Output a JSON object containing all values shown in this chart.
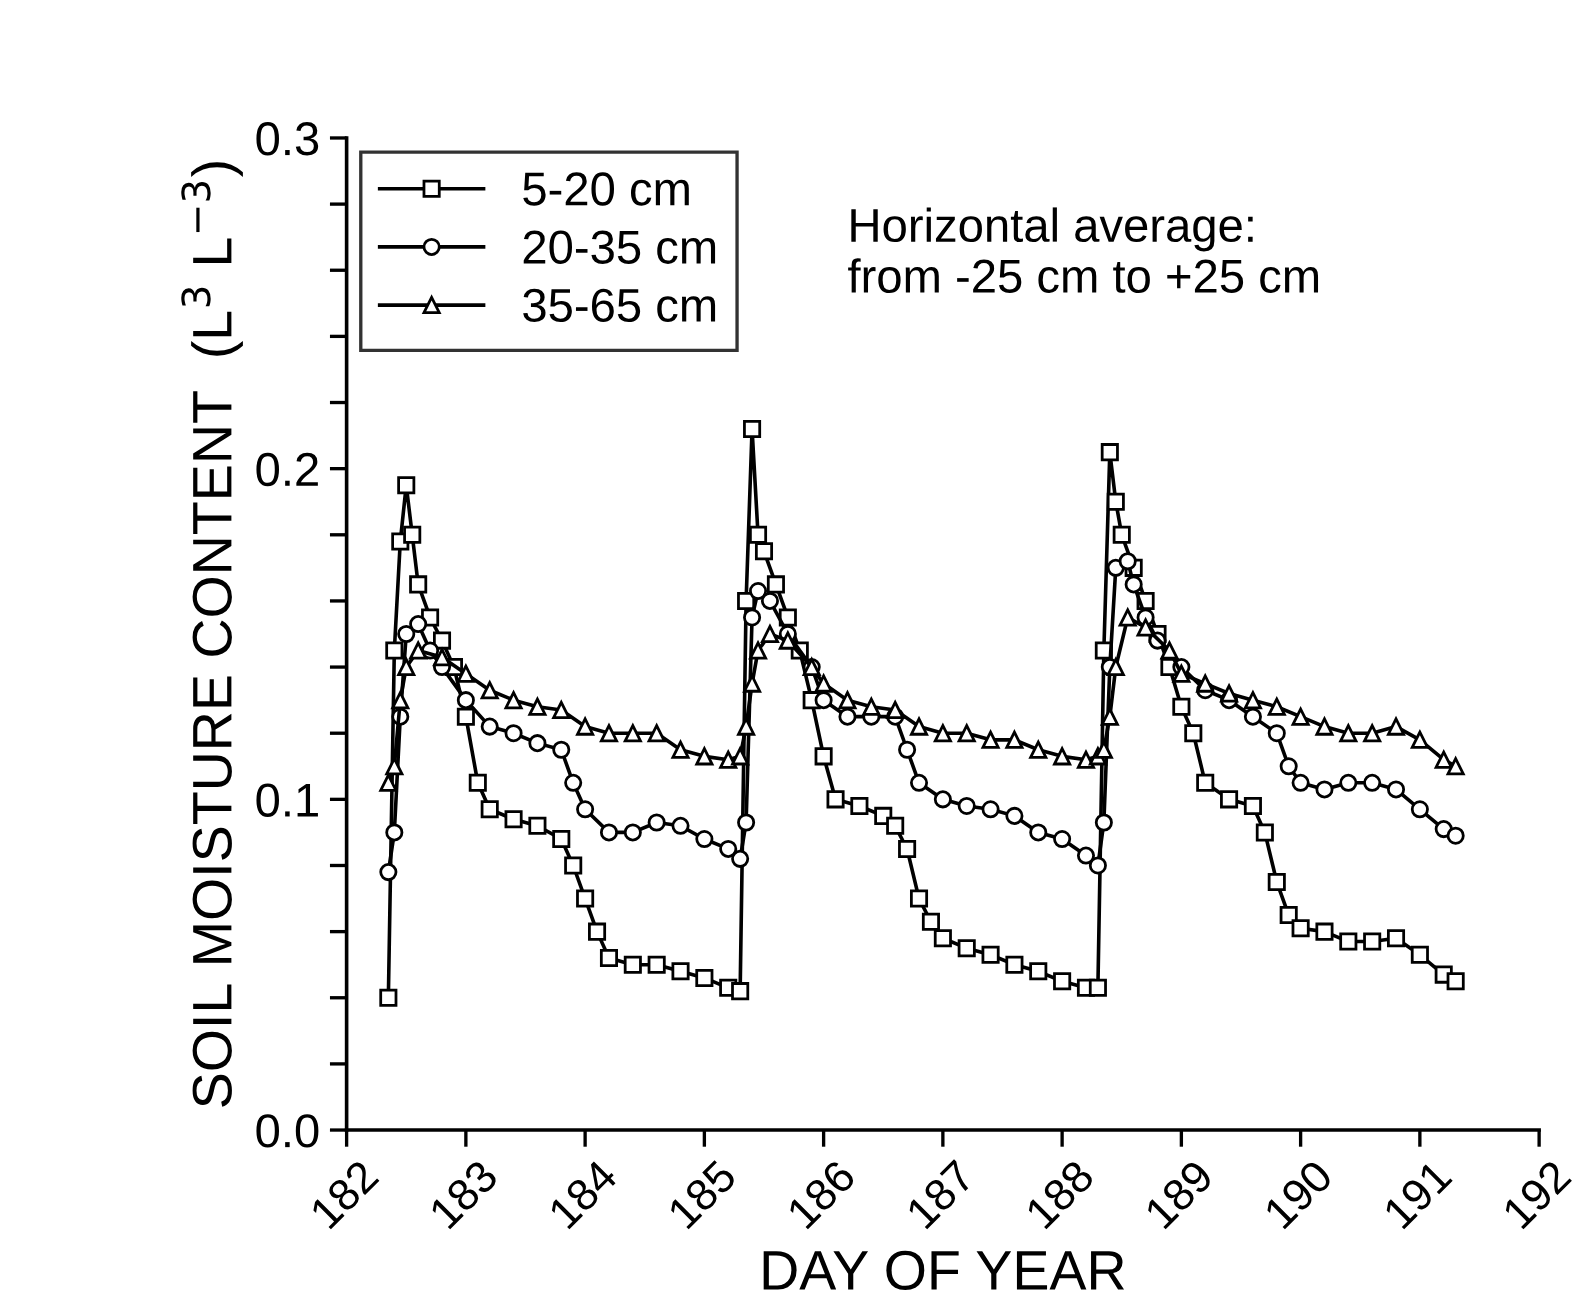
{
  "chart_data": {
    "type": "line",
    "xlabel": "DAY OF YEAR",
    "ylabel": "SOIL MOISTURE CONTENT  (L$^{3}$ L$^{−3}$)",
    "annotations": [
      "Horizontal average:\nfrom -25 cm to +25 cm"
    ],
    "xlim": [
      182,
      192
    ],
    "xticks": [
      182,
      183,
      184,
      185,
      186,
      187,
      188,
      189,
      190,
      191,
      192
    ],
    "ylim": [
      0,
      0.3
    ],
    "yticks": [
      {
        "value": 0.0,
        "label": "0.0"
      },
      {
        "value": 0.02,
        "label": null
      },
      {
        "value": 0.04,
        "label": null
      },
      {
        "value": 0.06,
        "label": null
      },
      {
        "value": 0.08,
        "label": null
      },
      0.1,
      {
        "value": 0.12,
        "label": null
      },
      {
        "value": 0.14,
        "label": null
      },
      {
        "value": 0.16,
        "label": null
      },
      {
        "value": 0.18,
        "label": null
      },
      0.2,
      {
        "value": 0.22,
        "label": null
      },
      {
        "value": 0.24,
        "label": null
      },
      {
        "value": 0.26,
        "label": null
      },
      {
        "value": 0.28,
        "label": null
      },
      0.3
    ],
    "grid": false,
    "legend": "top left",
    "line_style": "solid",
    "series": [
      {
        "name": "5-20 cm",
        "color": "#000000",
        "marker": "square",
        "x": [
          182.35,
          182.4,
          182.45,
          182.5,
          182.55,
          182.6,
          182.7,
          182.8,
          182.9,
          183.0,
          183.1,
          183.2,
          183.4,
          183.6,
          183.8,
          183.9,
          184.0,
          184.1,
          184.2,
          184.4,
          184.6,
          184.8,
          185.0,
          185.2,
          185.3,
          185.35,
          185.4,
          185.45,
          185.5,
          185.6,
          185.7,
          185.8,
          185.9,
          186.0,
          186.1,
          186.3,
          186.5,
          186.6,
          186.7,
          186.8,
          186.9,
          187.0,
          187.2,
          187.4,
          187.6,
          187.8,
          188.0,
          188.2,
          188.3,
          188.35,
          188.4,
          188.45,
          188.5,
          188.6,
          188.7,
          188.8,
          188.9,
          189.0,
          189.1,
          189.2,
          189.4,
          189.6,
          189.7,
          189.8,
          189.9,
          190.0,
          190.2,
          190.4,
          190.6,
          190.8,
          191.0,
          191.2,
          191.3
        ],
        "values": [
          0.04,
          0.145,
          0.178,
          0.195,
          0.18,
          0.165,
          0.155,
          0.148,
          0.14,
          0.125,
          0.105,
          0.097,
          0.094,
          0.092,
          0.088,
          0.08,
          0.07,
          0.06,
          0.052,
          0.05,
          0.05,
          0.048,
          0.046,
          0.043,
          0.042,
          0.16,
          0.212,
          0.18,
          0.175,
          0.165,
          0.155,
          0.145,
          0.13,
          0.113,
          0.1,
          0.098,
          0.095,
          0.092,
          0.085,
          0.07,
          0.063,
          0.058,
          0.055,
          0.053,
          0.05,
          0.048,
          0.045,
          0.043,
          0.043,
          0.145,
          0.205,
          0.19,
          0.18,
          0.17,
          0.16,
          0.15,
          0.14,
          0.128,
          0.12,
          0.105,
          0.1,
          0.098,
          0.09,
          0.075,
          0.065,
          0.061,
          0.06,
          0.057,
          0.057,
          0.058,
          0.053,
          0.047,
          0.045
        ]
      },
      {
        "name": "20-35 cm",
        "color": "#000000",
        "marker": "circle",
        "x": [
          182.35,
          182.4,
          182.45,
          182.5,
          182.6,
          182.7,
          182.8,
          183.0,
          183.2,
          183.4,
          183.6,
          183.8,
          183.9,
          184.0,
          184.2,
          184.4,
          184.6,
          184.8,
          185.0,
          185.2,
          185.3,
          185.35,
          185.4,
          185.45,
          185.55,
          185.7,
          185.9,
          186.0,
          186.2,
          186.4,
          186.6,
          186.7,
          186.8,
          187.0,
          187.2,
          187.4,
          187.6,
          187.8,
          188.0,
          188.2,
          188.3,
          188.35,
          188.4,
          188.45,
          188.55,
          188.6,
          188.7,
          188.8,
          189.0,
          189.2,
          189.4,
          189.6,
          189.8,
          189.9,
          190.0,
          190.2,
          190.4,
          190.6,
          190.8,
          191.0,
          191.2,
          191.3
        ],
        "values": [
          0.078,
          0.09,
          0.125,
          0.15,
          0.153,
          0.145,
          0.14,
          0.13,
          0.122,
          0.12,
          0.117,
          0.115,
          0.105,
          0.097,
          0.09,
          0.09,
          0.093,
          0.092,
          0.088,
          0.085,
          0.082,
          0.093,
          0.155,
          0.163,
          0.16,
          0.15,
          0.14,
          0.13,
          0.125,
          0.125,
          0.125,
          0.115,
          0.105,
          0.1,
          0.098,
          0.097,
          0.095,
          0.09,
          0.088,
          0.083,
          0.08,
          0.093,
          0.14,
          0.17,
          0.172,
          0.165,
          0.155,
          0.148,
          0.14,
          0.133,
          0.13,
          0.125,
          0.12,
          0.11,
          0.105,
          0.103,
          0.105,
          0.105,
          0.103,
          0.097,
          0.091,
          0.089
        ]
      },
      {
        "name": "35-65 cm",
        "color": "#000000",
        "marker": "triangle",
        "x": [
          182.35,
          182.4,
          182.45,
          182.5,
          182.6,
          182.8,
          183.0,
          183.2,
          183.4,
          183.6,
          183.8,
          184.0,
          184.2,
          184.4,
          184.6,
          184.8,
          185.0,
          185.2,
          185.3,
          185.35,
          185.4,
          185.45,
          185.55,
          185.7,
          185.9,
          186.0,
          186.2,
          186.4,
          186.6,
          186.8,
          187.0,
          187.2,
          187.4,
          187.6,
          187.8,
          188.0,
          188.2,
          188.3,
          188.35,
          188.4,
          188.45,
          188.55,
          188.7,
          188.9,
          189.0,
          189.2,
          189.4,
          189.6,
          189.8,
          190.0,
          190.2,
          190.4,
          190.6,
          190.8,
          191.0,
          191.2,
          191.3
        ],
        "values": [
          0.105,
          0.11,
          0.13,
          0.14,
          0.145,
          0.143,
          0.138,
          0.133,
          0.13,
          0.128,
          0.127,
          0.122,
          0.12,
          0.12,
          0.12,
          0.115,
          0.113,
          0.112,
          0.113,
          0.122,
          0.135,
          0.145,
          0.15,
          0.148,
          0.14,
          0.135,
          0.13,
          0.128,
          0.127,
          0.122,
          0.12,
          0.12,
          0.118,
          0.118,
          0.115,
          0.113,
          0.112,
          0.113,
          0.115,
          0.125,
          0.14,
          0.155,
          0.152,
          0.145,
          0.138,
          0.135,
          0.132,
          0.13,
          0.128,
          0.125,
          0.122,
          0.12,
          0.12,
          0.122,
          0.118,
          0.112,
          0.11
        ]
      }
    ]
  }
}
